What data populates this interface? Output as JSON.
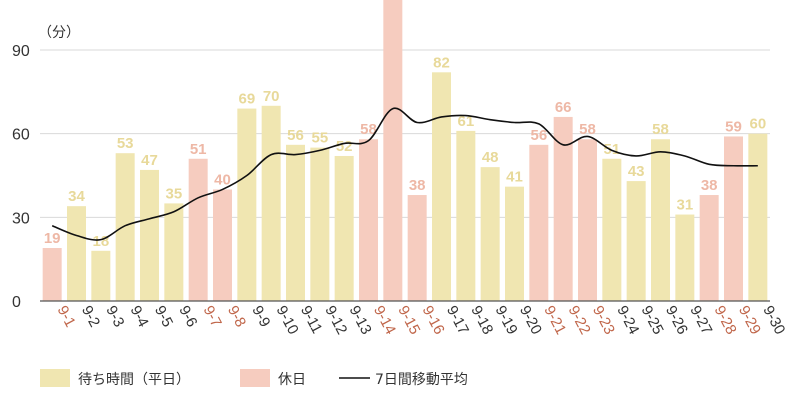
{
  "chart_data": {
    "type": "bar",
    "y_unit": "（分）",
    "ylim": [
      0,
      105
    ],
    "yticks": [
      0,
      30,
      60,
      90
    ],
    "grid": true,
    "categories": [
      "9-1",
      "9-2",
      "9-3",
      "9-4",
      "9-5",
      "9-6",
      "9-7",
      "9-8",
      "9-9",
      "9-10",
      "9-11",
      "9-12",
      "9-13",
      "9-14",
      "9-15",
      "9-16",
      "9-17",
      "9-18",
      "9-19",
      "9-20",
      "9-21",
      "9-22",
      "9-23",
      "9-24",
      "9-25",
      "9-26",
      "9-27",
      "9-28",
      "9-29",
      "9-30"
    ],
    "values": [
      19,
      34,
      18,
      53,
      47,
      35,
      51,
      40,
      69,
      70,
      56,
      55,
      52,
      58,
      null,
      38,
      82,
      61,
      48,
      41,
      56,
      66,
      58,
      51,
      43,
      58,
      31,
      38,
      59,
      60
    ],
    "data_labels": [
      "19",
      "34",
      "18",
      "53",
      "47",
      "35",
      "51",
      "40",
      "69",
      "70",
      "56",
      "55",
      "52",
      "58",
      "",
      "38",
      "82",
      "61",
      "48",
      "41",
      "56",
      "66",
      "58",
      "51",
      "43",
      "58",
      "31",
      "38",
      "59",
      "60"
    ],
    "holiday": [
      true,
      false,
      false,
      false,
      false,
      false,
      true,
      true,
      false,
      false,
      false,
      false,
      false,
      true,
      true,
      true,
      false,
      false,
      false,
      false,
      true,
      true,
      true,
      false,
      false,
      false,
      false,
      true,
      true,
      false
    ],
    "moving_average": [
      27,
      23.5,
      22,
      27,
      29.5,
      32,
      37,
      40,
      45,
      52.5,
      52.5,
      54,
      56.5,
      57.5,
      69,
      64,
      66,
      66.5,
      65,
      64,
      63.5,
      56,
      59,
      54,
      52,
      53.5,
      52,
      49,
      48.5,
      48.5
    ],
    "legend_position": "bottom-left",
    "series": [
      {
        "name": "待ち時間（平日）",
        "color": "#f0e6b1"
      },
      {
        "name": "休日",
        "color": "#f6ccbf"
      },
      {
        "name": "7日間移動平均",
        "color": "#111111"
      }
    ],
    "colors": {
      "weekday_bar": "#f0e6b1",
      "weekday_label": "#e8d99a",
      "holiday_bar": "#f6ccbf",
      "holiday_label": "#eeb8a6",
      "holiday_axis_label": "#c0664a",
      "weekday_axis_label": "#333333",
      "grid": "#d9d9d9",
      "axis": "#555555",
      "line": "#111111"
    }
  }
}
